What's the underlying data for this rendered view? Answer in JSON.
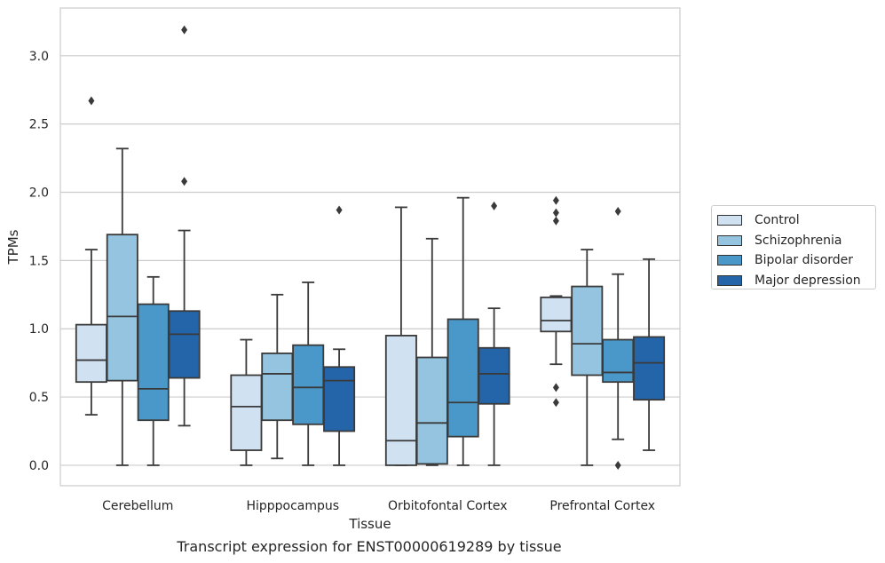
{
  "chart_data": {
    "type": "box",
    "title": "",
    "xlabel": "Tissue",
    "ylabel": "TPMs",
    "caption": "Transcript expression for ENST00000619289 by tissue",
    "ylim": [
      -0.15,
      3.35
    ],
    "yticks": [
      "0.0",
      "0.5",
      "1.0",
      "1.5",
      "2.0",
      "2.5",
      "3.0"
    ],
    "grid": true,
    "legend_placement": "right",
    "categories": [
      "Cerebellum",
      "Hipppocampus",
      "Orbitofontal Cortex",
      "Prefrontal Cortex"
    ],
    "series": [
      {
        "name": "Control",
        "color": "#d0e1f2",
        "boxes": [
          {
            "min": 0.37,
            "q1": 0.61,
            "median": 0.77,
            "q3": 1.03,
            "max": 1.58,
            "outliers": [
              2.67
            ]
          },
          {
            "min": 0.0,
            "q1": 0.11,
            "median": 0.43,
            "q3": 0.66,
            "max": 0.92,
            "outliers": []
          },
          {
            "min": 0.0,
            "q1": 0.0,
            "median": 0.18,
            "q3": 0.95,
            "max": 1.89,
            "outliers": []
          },
          {
            "min": 0.74,
            "q1": 0.98,
            "median": 1.06,
            "q3": 1.23,
            "max": 1.24,
            "outliers": [
              1.94,
              1.85,
              1.79,
              0.57,
              0.46
            ]
          }
        ]
      },
      {
        "name": "Schizophrenia",
        "color": "#94c4df",
        "boxes": [
          {
            "min": 0.0,
            "q1": 0.62,
            "median": 1.09,
            "q3": 1.69,
            "max": 2.32,
            "outliers": []
          },
          {
            "min": 0.05,
            "q1": 0.33,
            "median": 0.67,
            "q3": 0.82,
            "max": 1.25,
            "outliers": []
          },
          {
            "min": 0.0,
            "q1": 0.01,
            "median": 0.31,
            "q3": 0.79,
            "max": 1.66,
            "outliers": []
          },
          {
            "min": 0.0,
            "q1": 0.66,
            "median": 0.89,
            "q3": 1.31,
            "max": 1.58,
            "outliers": []
          }
        ]
      },
      {
        "name": "Bipolar disorder",
        "color": "#4a98c9",
        "boxes": [
          {
            "min": 0.0,
            "q1": 0.33,
            "median": 0.56,
            "q3": 1.18,
            "max": 1.38,
            "outliers": []
          },
          {
            "min": 0.0,
            "q1": 0.3,
            "median": 0.57,
            "q3": 0.88,
            "max": 1.34,
            "outliers": []
          },
          {
            "min": 0.0,
            "q1": 0.21,
            "median": 0.46,
            "q3": 1.07,
            "max": 1.96,
            "outliers": []
          },
          {
            "min": 0.19,
            "q1": 0.61,
            "median": 0.68,
            "q3": 0.92,
            "max": 1.4,
            "outliers": [
              1.86,
              0.0
            ]
          }
        ]
      },
      {
        "name": "Major depression",
        "color": "#2464a9",
        "boxes": [
          {
            "min": 0.29,
            "q1": 0.64,
            "median": 0.96,
            "q3": 1.13,
            "max": 1.72,
            "outliers": [
              3.19,
              2.08
            ]
          },
          {
            "min": 0.0,
            "q1": 0.25,
            "median": 0.62,
            "q3": 0.72,
            "max": 0.85,
            "outliers": [
              1.87
            ]
          },
          {
            "min": 0.0,
            "q1": 0.45,
            "median": 0.67,
            "q3": 0.86,
            "max": 1.15,
            "outliers": [
              1.9
            ]
          },
          {
            "min": 0.11,
            "q1": 0.48,
            "median": 0.75,
            "q3": 0.94,
            "max": 1.51,
            "outliers": []
          }
        ]
      }
    ]
  }
}
